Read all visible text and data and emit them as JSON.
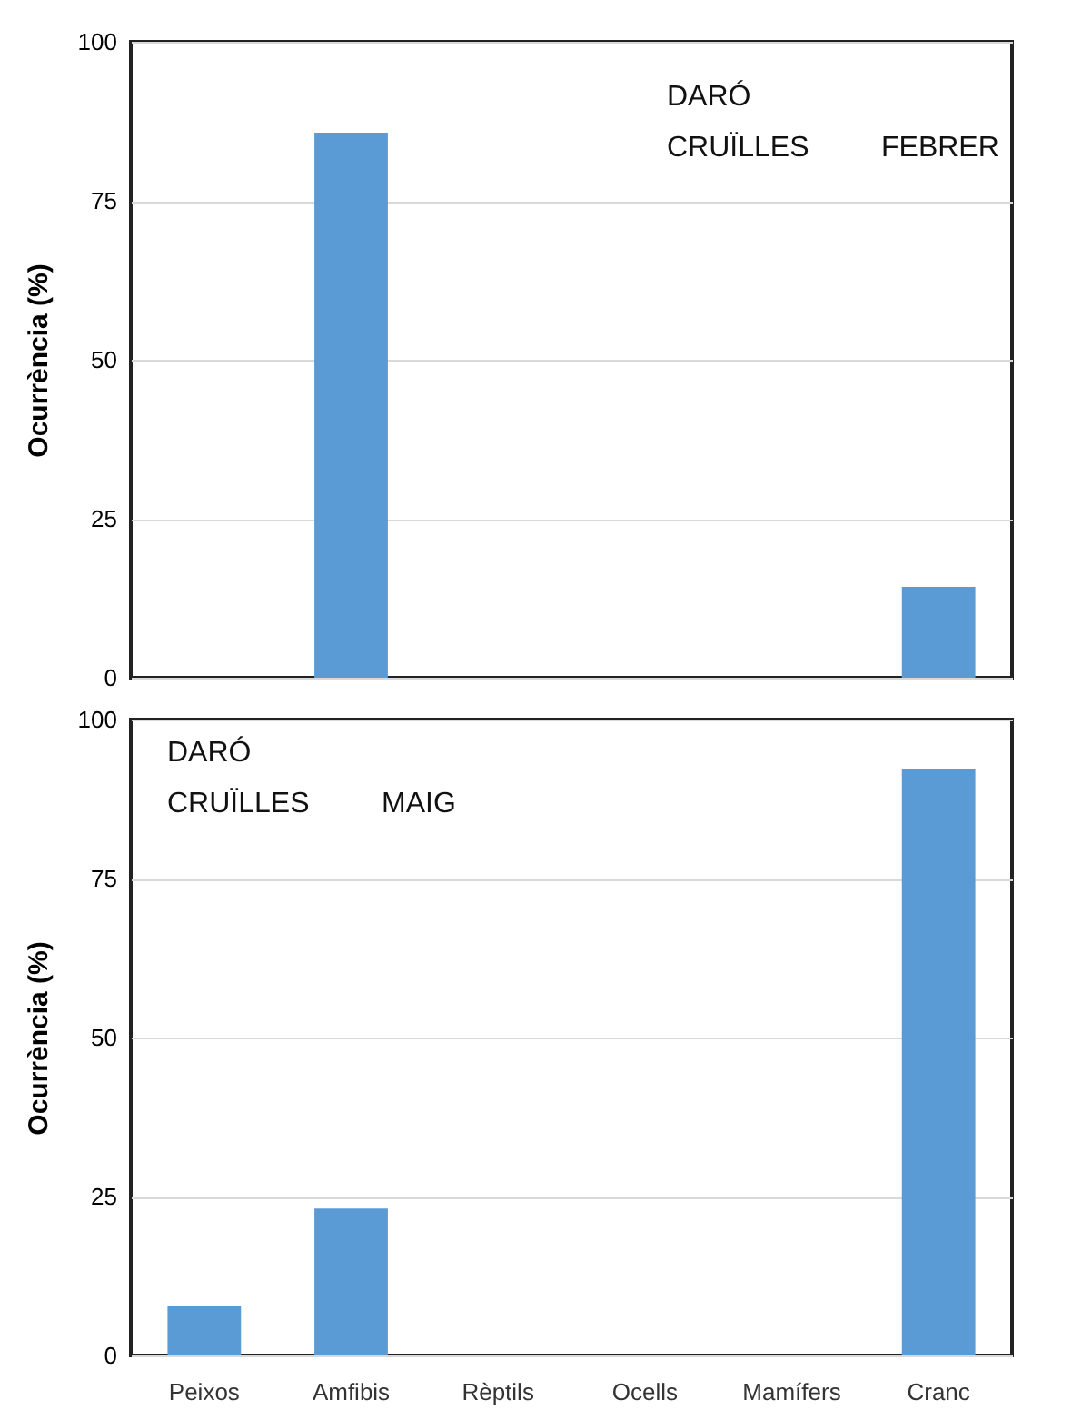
{
  "chart_data": [
    {
      "type": "bar",
      "ylabel": "Ocurrència (%)",
      "categories": [
        null,
        null,
        null,
        null,
        null,
        null
      ],
      "values": [
        0,
        85.7,
        0,
        0,
        0,
        14.3
      ],
      "color": "#5b9bd5",
      "ylim": [
        0,
        100
      ],
      "yticks": [
        0,
        25,
        50,
        75,
        100
      ],
      "grid": "y",
      "tick_labels": "y",
      "annotations": [
        "DARÓ",
        "CRUÏLLES",
        "FEBRER"
      ]
    },
    {
      "type": "bar",
      "ylabel": "Ocurrència (%)",
      "categories": [
        "Peixos",
        "Amfibis",
        "Rèptils",
        "Ocells",
        "Mamífers",
        "Cranc"
      ],
      "values": [
        7.7,
        23.1,
        0,
        0,
        0,
        92.3
      ],
      "color": "#5b9bd5",
      "ylim": [
        0,
        100
      ],
      "yticks": [
        0,
        25,
        50,
        75,
        100
      ],
      "grid": "y",
      "annotations": [
        "DARÓ",
        "CRUÏLLES",
        "MAIG"
      ]
    }
  ]
}
